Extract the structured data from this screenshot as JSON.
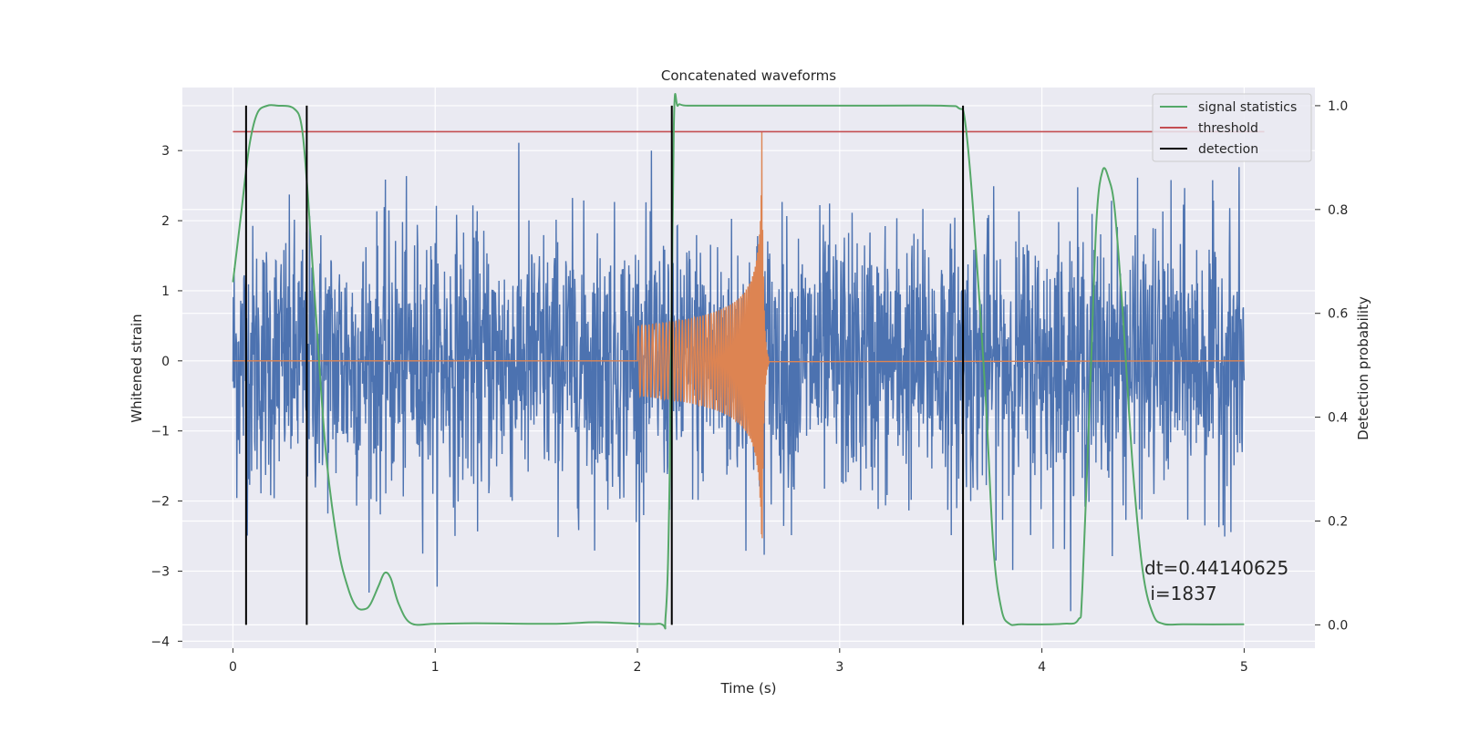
{
  "chart_data": {
    "type": "line",
    "title": "Concatenated waveforms",
    "xlabel": "Time (s)",
    "ylabel": "Whitened strain",
    "ylabel_right": "Detection probability",
    "xlim": [
      -0.25,
      5.35
    ],
    "ylim": [
      -4.1,
      3.9
    ],
    "ylim_right": [
      -0.045,
      1.035
    ],
    "x_ticks": [
      0,
      1,
      2,
      3,
      4,
      5
    ],
    "x_tick_labels": [
      "0",
      "1",
      "2",
      "3",
      "4",
      "5"
    ],
    "y_ticks": [
      -4,
      -3,
      -2,
      -1,
      0,
      1,
      2,
      3
    ],
    "y_tick_labels": [
      "−4",
      "−3",
      "−2",
      "−1",
      "0",
      "1",
      "2",
      "3"
    ],
    "y_right_ticks": [
      0.0,
      0.2,
      0.4,
      0.6,
      0.8,
      1.0
    ],
    "y_right_tick_labels": [
      "0.0",
      "0.2",
      "0.4",
      "0.6",
      "0.8",
      "1.0"
    ],
    "grid": true,
    "legend_position": "top-right",
    "legend": [
      "signal statistics",
      "threshold",
      "detection"
    ],
    "colors": {
      "strain": "#4c72b0",
      "injection": "#dd8452",
      "signal_statistics": "#55a868",
      "threshold": "#c44e52",
      "detection": "#000000",
      "background": "#eaeaf2"
    },
    "strain_noise": {
      "x_start": 0.0,
      "x_end": 5.0,
      "typical_abs_max": 2.6,
      "min": -3.8,
      "max": 3.55
    },
    "injection_chirp": {
      "x_start": 2.0,
      "x_merger": 2.615,
      "x_end": 2.65,
      "amplitude_start": 0.5,
      "amplitude_peak": 3.35,
      "amplitude_min_peak": -2.55
    },
    "signal_statistics": {
      "x": [
        0.0,
        0.04,
        0.08,
        0.12,
        0.17,
        0.22,
        0.3,
        0.34,
        0.37,
        0.41,
        0.46,
        0.52,
        0.57,
        0.61,
        0.65,
        0.68,
        0.72,
        0.75,
        0.78,
        0.82,
        0.88,
        1.0,
        1.2,
        1.6,
        1.8,
        2.1,
        2.14,
        2.16,
        2.18,
        2.2,
        2.25,
        2.5,
        3.0,
        3.5,
        3.59,
        3.62,
        3.66,
        3.72,
        3.76,
        3.8,
        3.84,
        3.9,
        4.1,
        4.18,
        4.2,
        4.24,
        4.27,
        4.3,
        4.33,
        4.36,
        4.4,
        4.45,
        4.5,
        4.55,
        4.6,
        4.7,
        5.0
      ],
      "y": [
        0.66,
        0.79,
        0.92,
        0.985,
        1.0,
        1.0,
        0.995,
        0.96,
        0.83,
        0.6,
        0.33,
        0.15,
        0.07,
        0.035,
        0.03,
        0.04,
        0.075,
        0.1,
        0.09,
        0.04,
        0.003,
        0.002,
        0.003,
        0.002,
        0.005,
        0.002,
        0.02,
        0.3,
        0.96,
        1.0,
        1.0,
        1.0,
        1.0,
        1.0,
        0.995,
        0.97,
        0.8,
        0.45,
        0.15,
        0.03,
        0.002,
        0.001,
        0.002,
        0.01,
        0.07,
        0.47,
        0.78,
        0.875,
        0.86,
        0.8,
        0.6,
        0.3,
        0.1,
        0.02,
        0.002,
        0.001,
        0.001
      ]
    },
    "threshold": {
      "x": [
        0.0,
        5.1
      ],
      "y": 0.95
    },
    "detections": [
      0.065,
      0.365,
      2.17,
      3.61
    ],
    "annotation": {
      "line1": "dt=0.44140625",
      "line2": " i=1837",
      "x": 4.5,
      "y": -3.0
    }
  }
}
